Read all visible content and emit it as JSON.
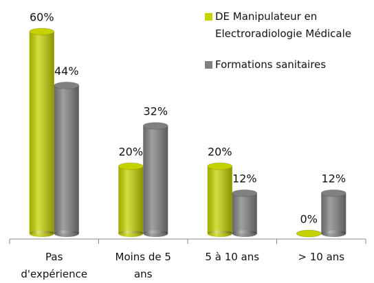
{
  "chart_data": {
    "type": "bar",
    "categories": [
      "Pas d'expérience",
      "Moins de 5 ans",
      "5 à 10 ans",
      "> 10 ans"
    ],
    "series": [
      {
        "name": "DE Manipulateur en Electroradiologie Médicale",
        "color": "#c5d200",
        "values": [
          60,
          20,
          20,
          0
        ],
        "value_labels": [
          "60%",
          "20%",
          "20%",
          "0%"
        ]
      },
      {
        "name": "Formations sanitaires",
        "color": "#808080",
        "values": [
          44,
          32,
          12,
          12
        ],
        "value_labels": [
          "44%",
          "32%",
          "12%",
          "12%"
        ]
      }
    ]
  }
}
